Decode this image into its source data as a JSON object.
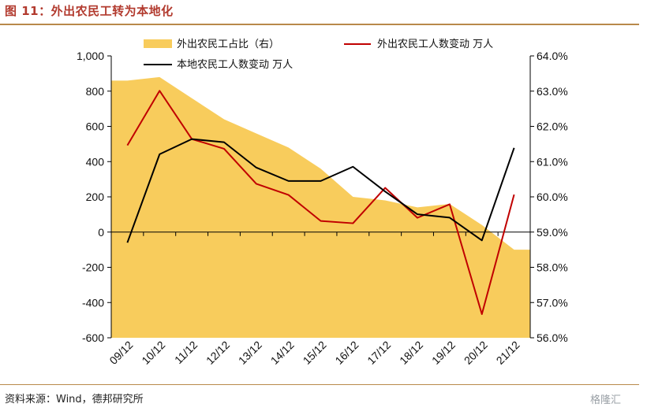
{
  "header": {
    "title": "图 11：外出农民工转为本地化"
  },
  "footer": {
    "source": "资料来源：Wind，德邦研究所",
    "watermark": "格隆汇"
  },
  "chart_data": {
    "type": "line",
    "categories": [
      "09/12",
      "10/12",
      "11/12",
      "12/12",
      "13/12",
      "14/12",
      "15/12",
      "16/12",
      "17/12",
      "18/12",
      "19/12",
      "20/12",
      "21/12"
    ],
    "series": [
      {
        "name": "外出农民工占比（右）",
        "type": "area",
        "axis": "right",
        "color": "#f8cc5c",
        "values": [
          63.3,
          63.4,
          62.8,
          62.2,
          61.8,
          61.4,
          60.8,
          60.0,
          59.9,
          59.7,
          59.8,
          59.2,
          58.5
        ]
      },
      {
        "name": "外出农民工人数变动  万人",
        "type": "line",
        "axis": "left",
        "color": "#c00000",
        "values": [
          492,
          802,
          528,
          473,
          274,
          211,
          63,
          50,
          251,
          81,
          158,
          -466,
          213
        ]
      },
      {
        "name": "本地农民工人数变动  万人",
        "type": "line",
        "axis": "left",
        "color": "#000000",
        "values": [
          -60,
          442,
          528,
          510,
          366,
          290,
          290,
          371,
          230,
          101,
          82,
          -47,
          478
        ]
      }
    ],
    "y_left": {
      "ylim": [
        -600,
        1000
      ],
      "ticks": [
        "-600",
        "-400",
        "-200",
        "0",
        "200",
        "400",
        "600",
        "800",
        "1,000"
      ],
      "tick_values": [
        -600,
        -400,
        -200,
        0,
        200,
        400,
        600,
        800,
        1000
      ]
    },
    "y_right": {
      "ylim": [
        56.0,
        64.0
      ],
      "ticks": [
        "56.0%",
        "57.0%",
        "58.0%",
        "59.0%",
        "60.0%",
        "61.0%",
        "62.0%",
        "63.0%",
        "64.0%"
      ],
      "tick_values": [
        56,
        57,
        58,
        59,
        60,
        61,
        62,
        63,
        64
      ]
    },
    "grid": false,
    "legend": "top"
  }
}
